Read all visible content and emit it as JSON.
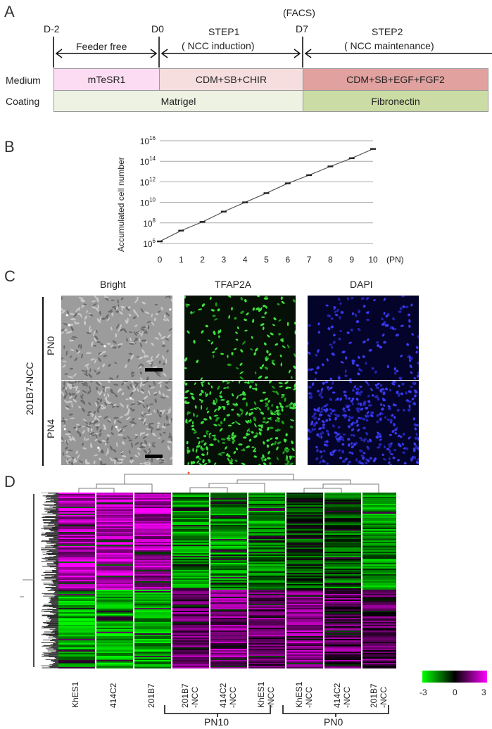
{
  "panel_a": {
    "letter": "A",
    "timepoints": {
      "d_minus2": "D-2",
      "d0": "D0",
      "facs": "(FACS)",
      "d7": "D7"
    },
    "phases": {
      "feeder_free": "Feeder free",
      "step1_title": "STEP1",
      "step1_sub": "( NCC induction)",
      "step2_title": "STEP2",
      "step2_sub": "( NCC maintenance)"
    },
    "row_labels": {
      "medium": "Medium",
      "coating": "Coating"
    },
    "medium": {
      "mtesr1": "mTeSR1",
      "cdm_sb_chir": "CDM+SB+CHIR",
      "cdm_sb_egf_fgf2": "CDM+SB+EGF+FGF2"
    },
    "coating": {
      "matrigel": "Matrigel",
      "fibronectin": "Fibronectin"
    },
    "colors": {
      "mtesr1": "#fbdcf2",
      "cdm_sb_chir": "#f6dede",
      "cdm_sb_egf_fgf2": "#e0a19f",
      "matrigel": "#eef2e3",
      "fibronectin": "#cbdca4"
    }
  },
  "panel_b": {
    "letter": "B",
    "chart_data": {
      "type": "line",
      "ylabel": "Accumulated cell number",
      "xlabel_unit": "(PN)",
      "x": [
        0,
        1,
        2,
        3,
        4,
        5,
        6,
        7,
        8,
        9,
        10
      ],
      "x_ticks": [
        "0",
        "1",
        "2",
        "3",
        "4",
        "5",
        "6",
        "7",
        "8",
        "9",
        "10"
      ],
      "y_log10": [
        6.2,
        7.25,
        8.1,
        9.1,
        10.0,
        10.9,
        11.85,
        12.65,
        13.5,
        14.3,
        15.2
      ],
      "y_scale": "log10",
      "ylim_log10": [
        6,
        16
      ],
      "y_ticks": [
        {
          "base": "10",
          "exp": "6"
        },
        {
          "base": "10",
          "exp": "8"
        },
        {
          "base": "10",
          "exp": "10"
        },
        {
          "base": "10",
          "exp": "12"
        },
        {
          "base": "10",
          "exp": "14"
        },
        {
          "base": "10",
          "exp": "16"
        }
      ],
      "grid": true
    }
  },
  "panel_c": {
    "letter": "C",
    "column_titles": [
      "Bright",
      "TFAP2A",
      "DAPI"
    ],
    "sample_label": "201B7-NCC",
    "row_labels": [
      "PN0",
      "PN4"
    ]
  },
  "panel_d": {
    "letter": "D",
    "columns": [
      {
        "line1": "KhES1",
        "line2": ""
      },
      {
        "line1": "414C2",
        "line2": ""
      },
      {
        "line1": "201B7",
        "line2": ""
      },
      {
        "line1": "201B7",
        "line2": "-NCC"
      },
      {
        "line1": "414C2",
        "line2": "-NCC"
      },
      {
        "line1": "KhES1",
        "line2": "-NCC"
      },
      {
        "line1": "KhES1",
        "line2": "-NCC"
      },
      {
        "line1": "414C2",
        "line2": "-NCC"
      },
      {
        "line1": "201B7",
        "line2": "-NCC"
      }
    ],
    "groups": [
      "PN10",
      "PN0"
    ],
    "scale": {
      "min": "-3",
      "mid": "0",
      "max": "3",
      "low_color": "#00ff00",
      "mid_color": "#000000",
      "high_color": "#ff00ff"
    }
  }
}
